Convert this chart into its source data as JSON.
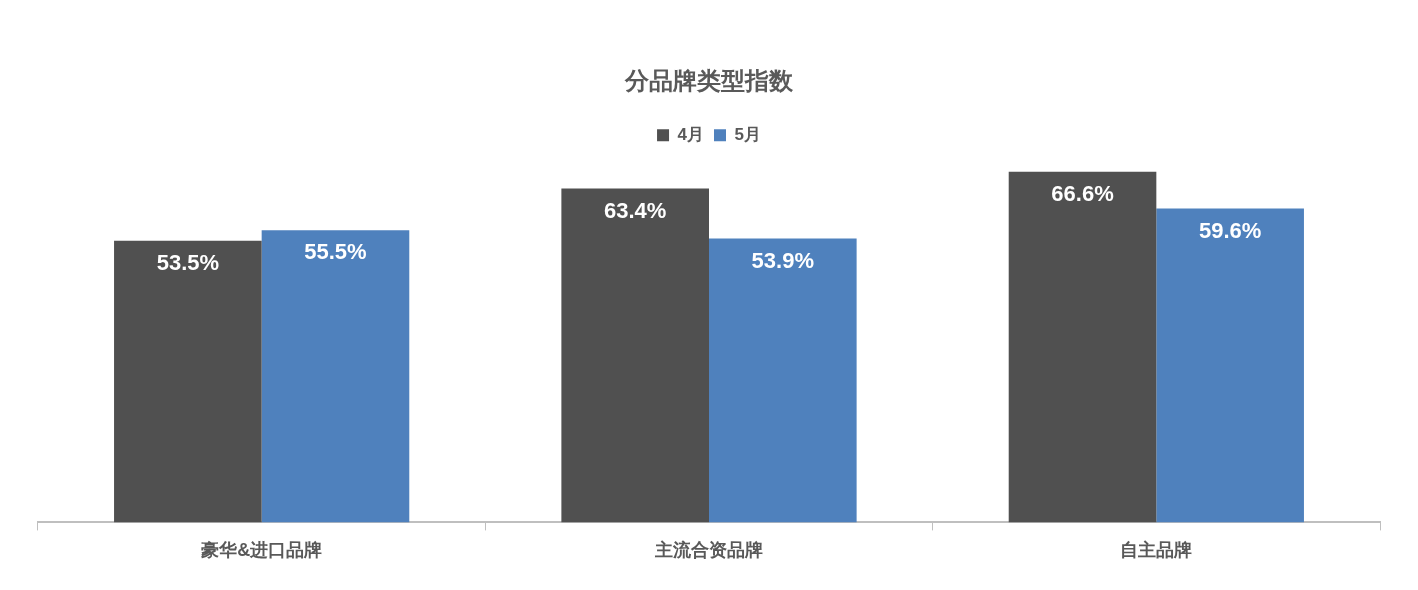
{
  "chart_data": {
    "type": "bar",
    "title": "分品牌类型指数",
    "categories": [
      "豪华&进口品牌",
      "主流合资品牌",
      "自主品牌"
    ],
    "series": [
      {
        "name": "4月",
        "color": "#505050",
        "values": [
          53.5,
          63.4,
          66.6
        ],
        "value_labels": [
          "53.5%",
          "63.4%",
          "66.6%"
        ]
      },
      {
        "name": "5月",
        "color": "#4f81bd",
        "values": [
          55.5,
          53.9,
          59.6
        ],
        "value_labels": [
          "55.5%",
          "53.9%",
          "59.6%"
        ]
      }
    ],
    "legend": "top",
    "grid": false,
    "tick_labels": "x"
  }
}
